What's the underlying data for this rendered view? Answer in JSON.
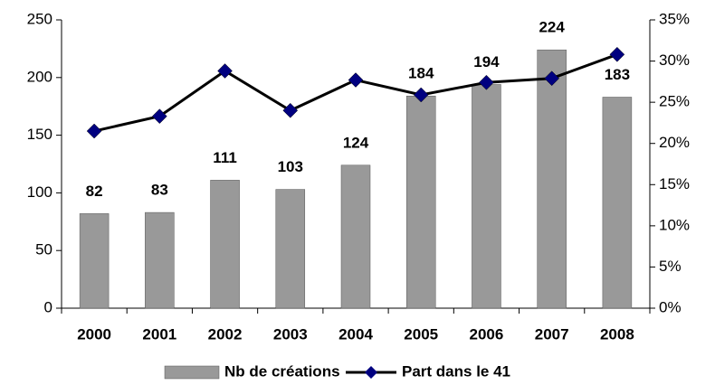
{
  "chart_data": {
    "type": "bar",
    "categories": [
      "2000",
      "2001",
      "2002",
      "2003",
      "2004",
      "2005",
      "2006",
      "2007",
      "2008"
    ],
    "series": [
      {
        "name": "Nb de créations",
        "type": "bar",
        "color": "#999999",
        "values": [
          82,
          83,
          111,
          103,
          124,
          184,
          194,
          224,
          183
        ]
      },
      {
        "name": "Part dans le 41",
        "type": "line",
        "axis": "y2",
        "color": "#000080",
        "values": [
          21.5,
          23.3,
          28.8,
          24.0,
          27.7,
          25.9,
          27.4,
          27.9,
          30.8
        ]
      }
    ],
    "ylim": [
      0,
      250
    ],
    "yticks": [
      0,
      50,
      100,
      150,
      200,
      250
    ],
    "y2lim": [
      0,
      35
    ],
    "y2ticks": [
      {
        "value": 0,
        "label": "0%"
      },
      {
        "value": 5,
        "label": "5%"
      },
      {
        "value": 10,
        "label": "10%"
      },
      {
        "value": 15,
        "label": "15%"
      },
      {
        "value": 20,
        "label": "20%"
      },
      {
        "value": 25,
        "label": "25%"
      },
      {
        "value": 30,
        "label": "30%"
      },
      {
        "value": 35,
        "label": "35%"
      }
    ],
    "grid": false,
    "legend": "bottom"
  }
}
